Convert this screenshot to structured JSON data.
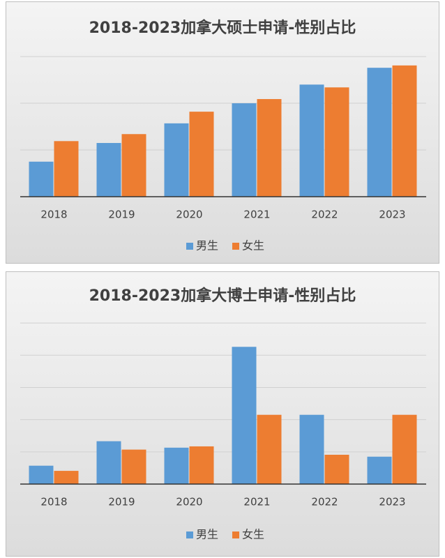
{
  "chart_data": [
    {
      "type": "bar",
      "title": "2018-2023加拿大硕士申请-性别占比",
      "categories": [
        "2018",
        "2019",
        "2020",
        "2021",
        "2022",
        "2023"
      ],
      "series": [
        {
          "name": "男生",
          "color": "#5b9bd5",
          "values": [
            7.5,
            11.5,
            15.7,
            20,
            24,
            27.6
          ]
        },
        {
          "name": "女生",
          "color": "#ed7d31",
          "values": [
            11.9,
            13.4,
            18.2,
            20.9,
            23.4,
            28.1
          ]
        }
      ],
      "ylim": [
        0,
        33
      ],
      "yticks": [
        0,
        10,
        20,
        30
      ],
      "grid": true,
      "legend": "bottom"
    },
    {
      "type": "bar",
      "title": "2018-2023加拿大博士申请-性别占比",
      "categories": [
        "2018",
        "2019",
        "2020",
        "2021",
        "2022",
        "2023"
      ],
      "series": [
        {
          "name": "男生",
          "color": "#5b9bd5",
          "values": [
            5.7,
            13.3,
            11.3,
            42.6,
            21.5,
            8.5
          ]
        },
        {
          "name": "女生",
          "color": "#ed7d31",
          "values": [
            4.1,
            10.7,
            11.7,
            21.5,
            9.1,
            21.5
          ]
        }
      ],
      "ylim": [
        0,
        55
      ],
      "yticks": [
        0,
        10,
        20,
        30,
        40,
        50
      ],
      "grid": true,
      "legend": "bottom"
    }
  ]
}
